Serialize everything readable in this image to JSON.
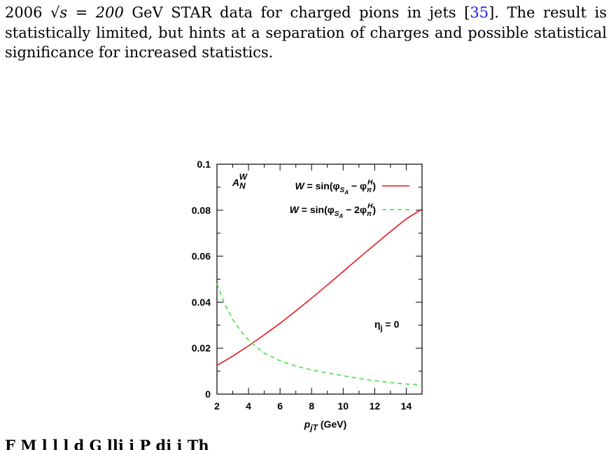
{
  "paragraph": {
    "prefix": "2006",
    "sqrt_sym": "√s = 200",
    "line1_rest": " GeV STAR data for charged pions in jets [",
    "cite": "35",
    "line1_end": "]. The result is statistically limited, but hints at a separation of charges and possible statistical significance for increased statistics."
  },
  "caption_partial": "F                M      l      l    l      d  G  lli  i               P    di  i        Th",
  "chart_data": {
    "type": "line",
    "title": "",
    "xlabel": "p_jT (GeV)",
    "ylabel": "A_N^W",
    "xlim": [
      2,
      15
    ],
    "ylim": [
      0,
      0.1
    ],
    "xticks": [
      2,
      4,
      6,
      8,
      10,
      12,
      14
    ],
    "yticks": [
      0,
      0.02,
      0.04,
      0.06,
      0.08,
      0.1
    ],
    "ytick_labels": [
      "0",
      "0.02",
      "0.04",
      "0.06",
      "0.08",
      "0.1"
    ],
    "grid": false,
    "legend_position": "top-right",
    "annotation": "η_j = 0",
    "series": [
      {
        "name": "W = sin(φ_SA − φ_π^H)",
        "color": "#e8141e",
        "style": "solid",
        "x": [
          2,
          3,
          4,
          5,
          6,
          7,
          8,
          9,
          10,
          11,
          12,
          13,
          14,
          15
        ],
        "y": [
          0.0125,
          0.0165,
          0.021,
          0.0258,
          0.0308,
          0.0362,
          0.0417,
          0.0475,
          0.0533,
          0.0592,
          0.065,
          0.0707,
          0.0762,
          0.0805
        ]
      },
      {
        "name": "W = sin(φ_SA − 2φ_π^H)",
        "color": "#3fe23f",
        "style": "dashed",
        "x": [
          2,
          2.5,
          3,
          3.5,
          4,
          4.5,
          5,
          6,
          7,
          8,
          9,
          10,
          11,
          12,
          13,
          14,
          15
        ],
        "y": [
          0.048,
          0.039,
          0.0325,
          0.0275,
          0.0235,
          0.0205,
          0.0178,
          0.0145,
          0.0122,
          0.0105,
          0.0092,
          0.008,
          0.0068,
          0.0058,
          0.005,
          0.0044,
          0.004
        ]
      }
    ]
  }
}
